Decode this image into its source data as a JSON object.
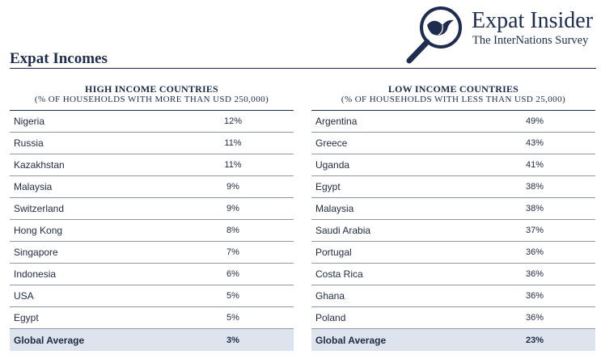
{
  "page_title": "Expat Incomes",
  "logo": {
    "title": "Expat Insider",
    "subtitle": "The InterNations Survey"
  },
  "high_income": {
    "heading": "HIGH INCOME COUNTRIES",
    "subheading": "(% OF HOUSEHOLDS WITH MORE THAN USD 250,000)",
    "rows": [
      {
        "country": "Nigeria",
        "value": "12%"
      },
      {
        "country": "Russia",
        "value": "11%"
      },
      {
        "country": "Kazakhstan",
        "value": "11%"
      },
      {
        "country": "Malaysia",
        "value": "9%"
      },
      {
        "country": "Switzerland",
        "value": "9%"
      },
      {
        "country": "Hong Kong",
        "value": "8%"
      },
      {
        "country": "Singapore",
        "value": "7%"
      },
      {
        "country": "Indonesia",
        "value": "6%"
      },
      {
        "country": "USA",
        "value": "5%"
      },
      {
        "country": "Egypt",
        "value": "5%"
      }
    ],
    "average": {
      "label": "Global Average",
      "value": "3%"
    }
  },
  "low_income": {
    "heading": "LOW INCOME COUNTRIES",
    "subheading": "(% OF HOUSEHOLDS WITH LESS THAN USD 25,000)",
    "rows": [
      {
        "country": "Argentina",
        "value": "49%"
      },
      {
        "country": "Greece",
        "value": "43%"
      },
      {
        "country": "Uganda",
        "value": "41%"
      },
      {
        "country": "Egypt",
        "value": "38%"
      },
      {
        "country": "Malaysia",
        "value": "38%"
      },
      {
        "country": "Saudi Arabia",
        "value": "37%"
      },
      {
        "country": "Portugal",
        "value": "36%"
      },
      {
        "country": "Costa Rica",
        "value": "36%"
      },
      {
        "country": "Ghana",
        "value": "36%"
      },
      {
        "country": "Poland",
        "value": "36%"
      }
    ],
    "average": {
      "label": "Global Average",
      "value": "23%"
    }
  },
  "colors": {
    "navy": "#1d2c4f",
    "average_row": "#dde4ee"
  },
  "icons": {
    "logo": "magnifier-bird-icon"
  }
}
